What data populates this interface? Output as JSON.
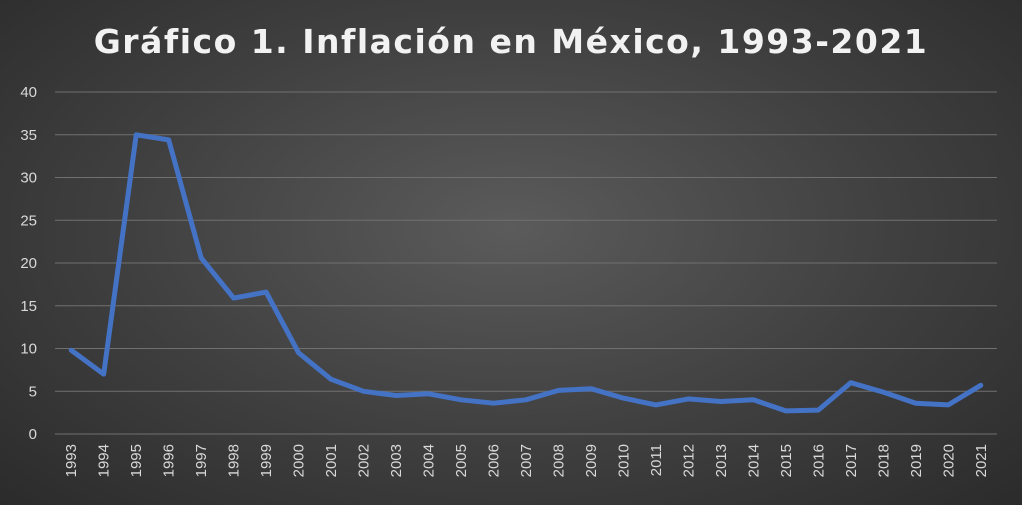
{
  "chart_data": {
    "type": "line",
    "title": "Gráfico 1. Inflación en México, 1993-2021",
    "xlabel": "",
    "ylabel": "",
    "ylim": [
      0,
      40
    ],
    "yticks": [
      0,
      5,
      10,
      15,
      20,
      25,
      30,
      35,
      40
    ],
    "grid": true,
    "legend": "none",
    "series_color": "#4472c4",
    "categories": [
      "1993",
      "1994",
      "1995",
      "1996",
      "1997",
      "1998",
      "1999",
      "2000",
      "2001",
      "2002",
      "2003",
      "2004",
      "2005",
      "2006",
      "2007",
      "2008",
      "2009",
      "2010",
      "2011",
      "2012",
      "2013",
      "2014",
      "2015",
      "2016",
      "2017",
      "2018",
      "2019",
      "2020",
      "2021"
    ],
    "series": [
      {
        "values": [
          9.8,
          7.0,
          35.0,
          34.4,
          20.6,
          15.9,
          16.6,
          9.5,
          6.4,
          5.0,
          4.5,
          4.7,
          4.0,
          3.6,
          4.0,
          5.1,
          5.3,
          4.2,
          3.4,
          4.1,
          3.8,
          4.0,
          2.7,
          2.8,
          6.0,
          4.9,
          3.6,
          3.4,
          5.7
        ]
      }
    ]
  }
}
